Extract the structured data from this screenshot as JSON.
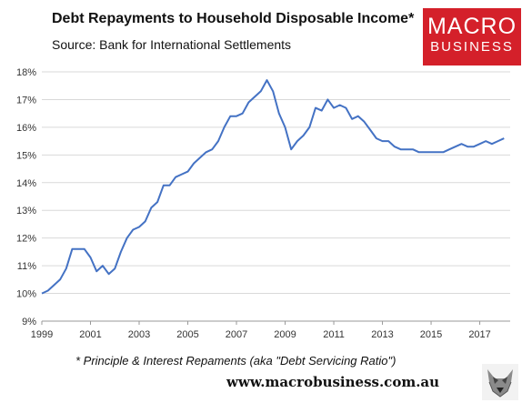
{
  "header": {
    "title": "Debt Repayments to Household Disposable Income*",
    "subtitle": "Source: Bank for International Settlements"
  },
  "logo": {
    "line1": "MACRO",
    "line2": "BUSINESS",
    "color": "#d4202a"
  },
  "footer": {
    "footnote": "* Principle & Interest Repaments (aka \"Debt Servicing Ratio\")",
    "website": "www.macrobusiness.com.au",
    "mascot_icon": "wolf-icon"
  },
  "chart_data": {
    "type": "line",
    "title": "Debt Repayments to Household Disposable Income*",
    "xlabel": "",
    "ylabel": "",
    "xlim": [
      1999,
      2018.25
    ],
    "ylim": [
      9,
      18
    ],
    "x_ticks": [
      "1999",
      "2001",
      "2003",
      "2005",
      "2007",
      "2009",
      "2011",
      "2013",
      "2015",
      "2017"
    ],
    "y_ticks": [
      "9%",
      "10%",
      "11%",
      "12%",
      "13%",
      "14%",
      "15%",
      "16%",
      "17%",
      "18%"
    ],
    "grid": "horizontal",
    "line_color": "#4472c4",
    "series": [
      {
        "x": [
          1999.0,
          1999.25,
          1999.5,
          1999.75,
          2000.0,
          2000.25,
          2000.5,
          2000.75,
          2001.0,
          2001.25,
          2001.5,
          2001.75,
          2002.0,
          2002.25,
          2002.5,
          2002.75,
          2003.0,
          2003.25,
          2003.5,
          2003.75,
          2004.0,
          2004.25,
          2004.5,
          2004.75,
          2005.0,
          2005.25,
          2005.5,
          2005.75,
          2006.0,
          2006.25,
          2006.5,
          2006.75,
          2007.0,
          2007.25,
          2007.5,
          2007.75,
          2008.0,
          2008.25,
          2008.5,
          2008.75,
          2009.0,
          2009.25,
          2009.5,
          2009.75,
          2010.0,
          2010.25,
          2010.5,
          2010.75,
          2011.0,
          2011.25,
          2011.5,
          2011.75,
          2012.0,
          2012.25,
          2012.5,
          2012.75,
          2013.0,
          2013.25,
          2013.5,
          2013.75,
          2014.0,
          2014.25,
          2014.5,
          2014.75,
          2015.0,
          2015.25,
          2015.5,
          2015.75,
          2016.0,
          2016.25,
          2016.5,
          2016.75,
          2017.0,
          2017.25,
          2017.5,
          2017.75,
          2018.0
        ],
        "values": [
          10.0,
          10.1,
          10.3,
          10.5,
          10.9,
          11.6,
          11.6,
          11.6,
          11.3,
          10.8,
          11.0,
          10.7,
          10.9,
          11.5,
          12.0,
          12.3,
          12.4,
          12.6,
          13.1,
          13.3,
          13.9,
          13.9,
          14.2,
          14.3,
          14.4,
          14.7,
          14.9,
          15.1,
          15.2,
          15.5,
          16.0,
          16.4,
          16.4,
          16.5,
          16.9,
          17.1,
          17.3,
          17.7,
          17.3,
          16.5,
          16.0,
          15.2,
          15.5,
          15.7,
          16.0,
          16.7,
          16.6,
          17.0,
          16.7,
          16.8,
          16.7,
          16.3,
          16.4,
          16.2,
          15.9,
          15.6,
          15.5,
          15.5,
          15.3,
          15.2,
          15.2,
          15.2,
          15.1,
          15.1,
          15.1,
          15.1,
          15.1,
          15.2,
          15.3,
          15.4,
          15.3,
          15.3,
          15.4,
          15.5,
          15.4,
          15.5,
          15.6
        ]
      }
    ]
  }
}
